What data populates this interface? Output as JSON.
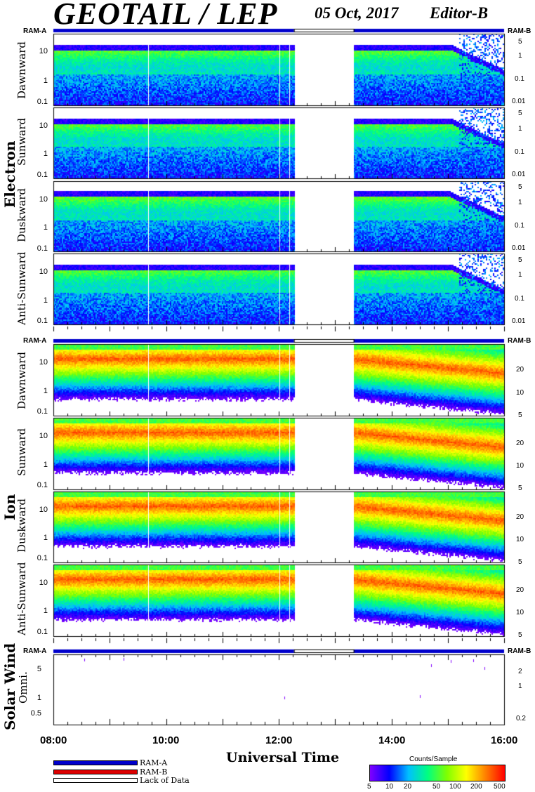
{
  "header": {
    "title": "GEOTAIL / LEP",
    "date": "05 Oct, 2017",
    "editor": "Editor-B"
  },
  "ram_labels": {
    "left": "RAM-A",
    "right": "RAM-B"
  },
  "groups": {
    "electron": "Electron",
    "ion": "Ion",
    "solar_wind": "Solar Wind"
  },
  "panels": {
    "electron": [
      "Dawnward",
      "Sunward",
      "Duskward",
      "Anti-Sunward"
    ],
    "ion": [
      "Dawnward",
      "Sunward",
      "Duskward",
      "Anti-Sunward"
    ],
    "solar_wind": "Omni."
  },
  "axis_ticks": {
    "energy_left": [
      "10",
      "1",
      "0.1"
    ],
    "electron_right": [
      "5",
      "1",
      "0.1",
      "0.01"
    ],
    "ion_right": [
      "20",
      "10",
      "5"
    ],
    "solar_left": [
      "5",
      "1",
      "0.5"
    ],
    "solar_right": [
      "2",
      "1",
      "0.2"
    ]
  },
  "x_axis": {
    "label": "Universal Time",
    "hours": [
      "08:00",
      "10:00",
      "12:00",
      "14:00",
      "16:00"
    ]
  },
  "legend": {
    "items": [
      {
        "label": "RAM-A",
        "color": "#0000cc"
      },
      {
        "label": "RAM-B",
        "color": "#dd0000"
      },
      {
        "label": "Lack of Data",
        "color": "#ffffff"
      }
    ]
  },
  "colorbar": {
    "title": "Counts/Sample",
    "ticks": [
      "5",
      "10",
      "20",
      "50",
      "100",
      "200",
      "500"
    ]
  },
  "chart_data": {
    "type": "heatmap",
    "x_range_hours": [
      8,
      16
    ],
    "data_gap_hours": [
      12.27,
      13.33
    ],
    "electron_energy_range": [
      0.08,
      40
    ],
    "ion_energy_range": [
      0.08,
      40
    ],
    "colorscale": [
      "#8000ff",
      "#0000ff",
      "#00c0ff",
      "#00ff80",
      "#80ff00",
      "#ffff00",
      "#ff8000",
      "#ff0000"
    ],
    "solar_wind_points": [
      {
        "x": 8.55,
        "y": 6.5
      },
      {
        "x": 9.25,
        "y": 6.8
      },
      {
        "x": 12.1,
        "y": 1.1
      },
      {
        "x": 14.5,
        "y": 1.2
      },
      {
        "x": 14.7,
        "y": 5.0
      },
      {
        "x": 15.05,
        "y": 6.2
      },
      {
        "x": 15.45,
        "y": 6.3
      },
      {
        "x": 15.65,
        "y": 4.5
      }
    ]
  }
}
